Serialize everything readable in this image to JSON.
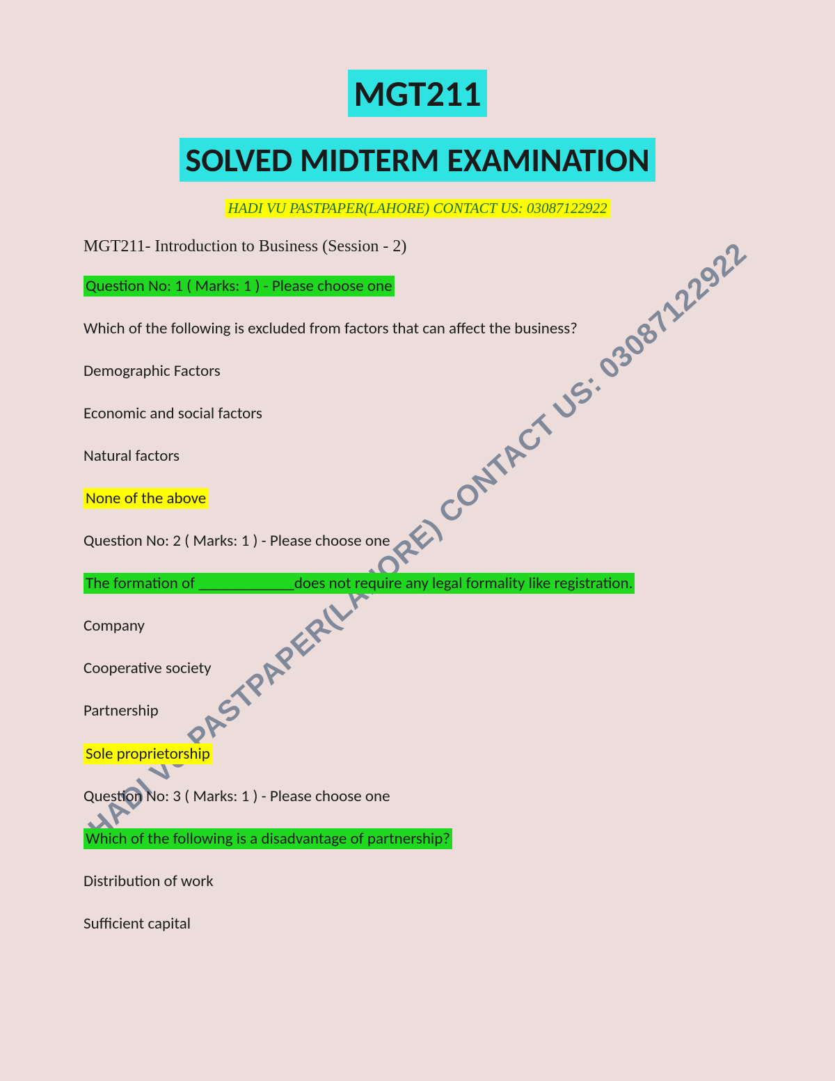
{
  "colors": {
    "page_bg": "#ecdddb",
    "cyan_highlight": "#2fe3e3",
    "green_highlight": "#1fd81f",
    "yellow_highlight": "#ffff00",
    "text": "#1a1a1a",
    "contact_text": "#1a6b1a",
    "watermark": "#5c6e85"
  },
  "header": {
    "course_code": "MGT211",
    "subtitle": "SOLVED MIDTERM EXAMINATION",
    "contact_line": "HADI VU PASTPAPER(LAHORE) CONTACT US: 03087122922",
    "session": "MGT211- Introduction to Business (Session - 2)"
  },
  "watermark": "HADI VU PASTPAPER(LAHORE) CONTACT US: 03087122922",
  "q1": {
    "header": "Question No: 1 ( Marks: 1 ) - Please choose one",
    "prompt": "Which of the following is excluded from factors that can affect the business?",
    "opt_a": "Demographic Factors",
    "opt_b": "Economic and social factors",
    "opt_c": "Natural factors",
    "opt_d": "None of the above"
  },
  "q2": {
    "header": "Question No: 2 ( Marks: 1 ) - Please choose one",
    "prompt": "The formation of ____________does not require any legal formality like registration.",
    "opt_a": "Company",
    "opt_b": "Cooperative society",
    "opt_c": "Partnership",
    "opt_d": "Sole proprietorship"
  },
  "q3": {
    "header": "Question No: 3 ( Marks: 1 ) - Please choose one",
    "prompt": "Which of the following is a disadvantage of partnership?",
    "opt_a": "Distribution of work",
    "opt_b": "Sufficient capital"
  }
}
